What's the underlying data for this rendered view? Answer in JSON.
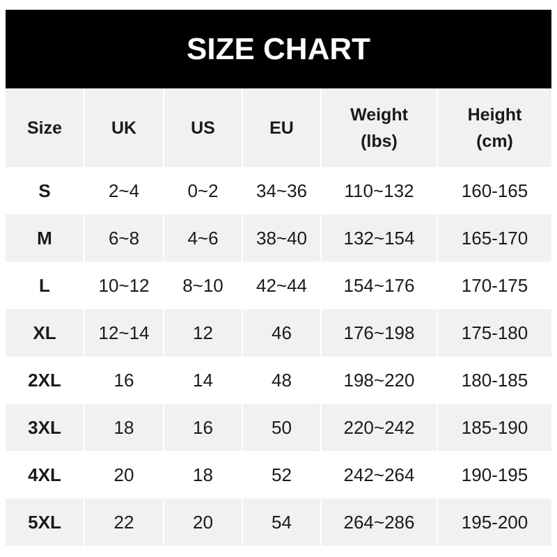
{
  "title": "SIZE CHART",
  "chart_data": {
    "type": "table",
    "title": "SIZE CHART",
    "columns": [
      "Size",
      "UK",
      "US",
      "EU",
      "Weight (lbs)",
      "Height (cm)"
    ],
    "rows": [
      [
        "S",
        "2~4",
        "0~2",
        "34~36",
        "110~132",
        "160-165"
      ],
      [
        "M",
        "6~8",
        "4~6",
        "38~40",
        "132~154",
        "165-170"
      ],
      [
        "L",
        "10~12",
        "8~10",
        "42~44",
        "154~176",
        "170-175"
      ],
      [
        "XL",
        "12~14",
        "12",
        "46",
        "176~198",
        "175-180"
      ],
      [
        "2XL",
        "16",
        "14",
        "48",
        "198~220",
        "180-185"
      ],
      [
        "3XL",
        "18",
        "16",
        "50",
        "220~242",
        "185-190"
      ],
      [
        "4XL",
        "20",
        "18",
        "52",
        "242~264",
        "190-195"
      ],
      [
        "5XL",
        "22",
        "20",
        "54",
        "264~286",
        "195-200"
      ]
    ]
  },
  "colors": {
    "header_bg": "#000000",
    "stripe": "#f1f1f1",
    "text": "#1a1a1a"
  }
}
